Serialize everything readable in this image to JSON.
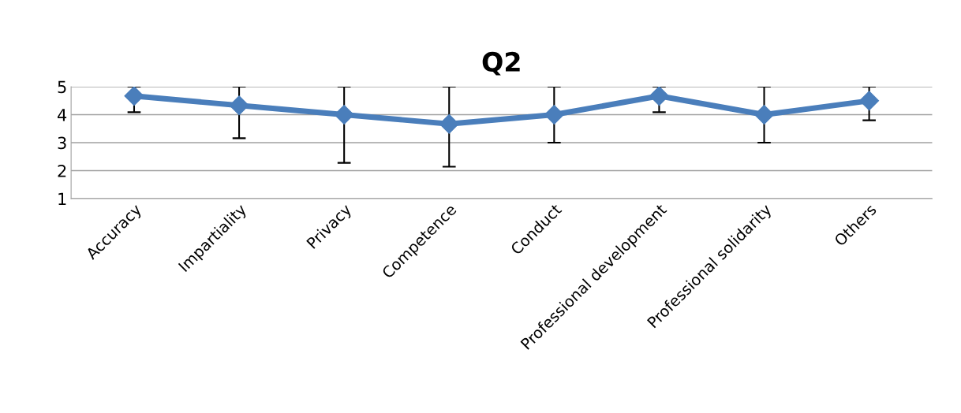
{
  "chart_data": {
    "type": "line",
    "title": "Q2",
    "categories": [
      "Accuracy",
      "Impartiality",
      "Privacy",
      "Competence",
      "Conduct",
      "Professional development",
      "Professional solidarity",
      "Others"
    ],
    "series": [
      {
        "color": "#4a7ebb",
        "values": [
          4.67,
          4.33,
          4.0,
          3.67,
          4.0,
          4.67,
          4.0,
          4.5
        ],
        "errors": [
          [
            4.09,
            5
          ],
          [
            3.16,
            5
          ],
          [
            2.28,
            5
          ],
          [
            2.14,
            5
          ],
          [
            3.0,
            5
          ],
          [
            4.09,
            5
          ],
          [
            3.0,
            5
          ],
          [
            3.8,
            5
          ]
        ]
      }
    ],
    "ylim": [
      1,
      5
    ],
    "yticks": [
      1,
      2,
      3,
      4,
      5
    ],
    "grid": "y",
    "marker": "diamond",
    "line_style": "solid"
  }
}
